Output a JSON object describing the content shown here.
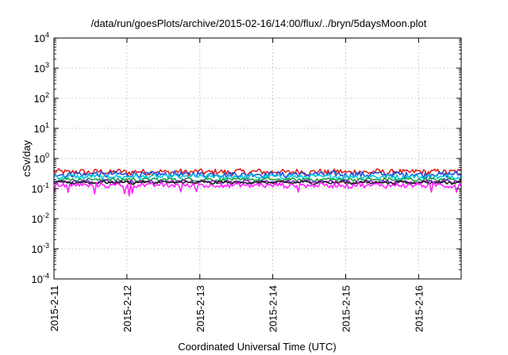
{
  "chart_data": {
    "type": "line",
    "title": "/data/run/goesPlots/archive/2015-02-16/14:00/flux/../bryn/5daysMoon.plot",
    "xlabel": "Coordinated Universal Time (UTC)",
    "ylabel": "cSv/day",
    "y_scale": "log",
    "ylim_exponents": [
      -4,
      4
    ],
    "y_ticks": [
      {
        "base": "10",
        "exp": "-4"
      },
      {
        "base": "10",
        "exp": "-3"
      },
      {
        "base": "10",
        "exp": "-2"
      },
      {
        "base": "10",
        "exp": "-1"
      },
      {
        "base": "10",
        "exp": "0"
      },
      {
        "base": "10",
        "exp": "1"
      },
      {
        "base": "10",
        "exp": "2"
      },
      {
        "base": "10",
        "exp": "3"
      },
      {
        "base": "10",
        "exp": "4"
      }
    ],
    "x_ticks": [
      "2015-2-11",
      "2015-2-12",
      "2015-2-13",
      "2015-2-14",
      "2015-2-15",
      "2015-2-16"
    ],
    "xlim": [
      "2015-02-11 00:00",
      "2015-02-16 14:00"
    ],
    "grid": true,
    "legend": "none",
    "series": [
      {
        "color": "#e0201f",
        "base": 0.36,
        "spread": 0.22
      },
      {
        "color": "#1f4fe0",
        "base": 0.3,
        "spread": 0.22
      },
      {
        "color": "#00c8e0",
        "base": 0.25,
        "spread": 0.18
      },
      {
        "color": "#1aa33a",
        "base": 0.2,
        "spread": 0.12
      },
      {
        "color": "#8a1fc9",
        "base": 0.17,
        "spread": 0.12
      },
      {
        "color": "#202020",
        "base": 0.16,
        "spread": 0.1
      },
      {
        "color": "#ff20ff",
        "base": 0.13,
        "spread": 0.18
      }
    ]
  }
}
